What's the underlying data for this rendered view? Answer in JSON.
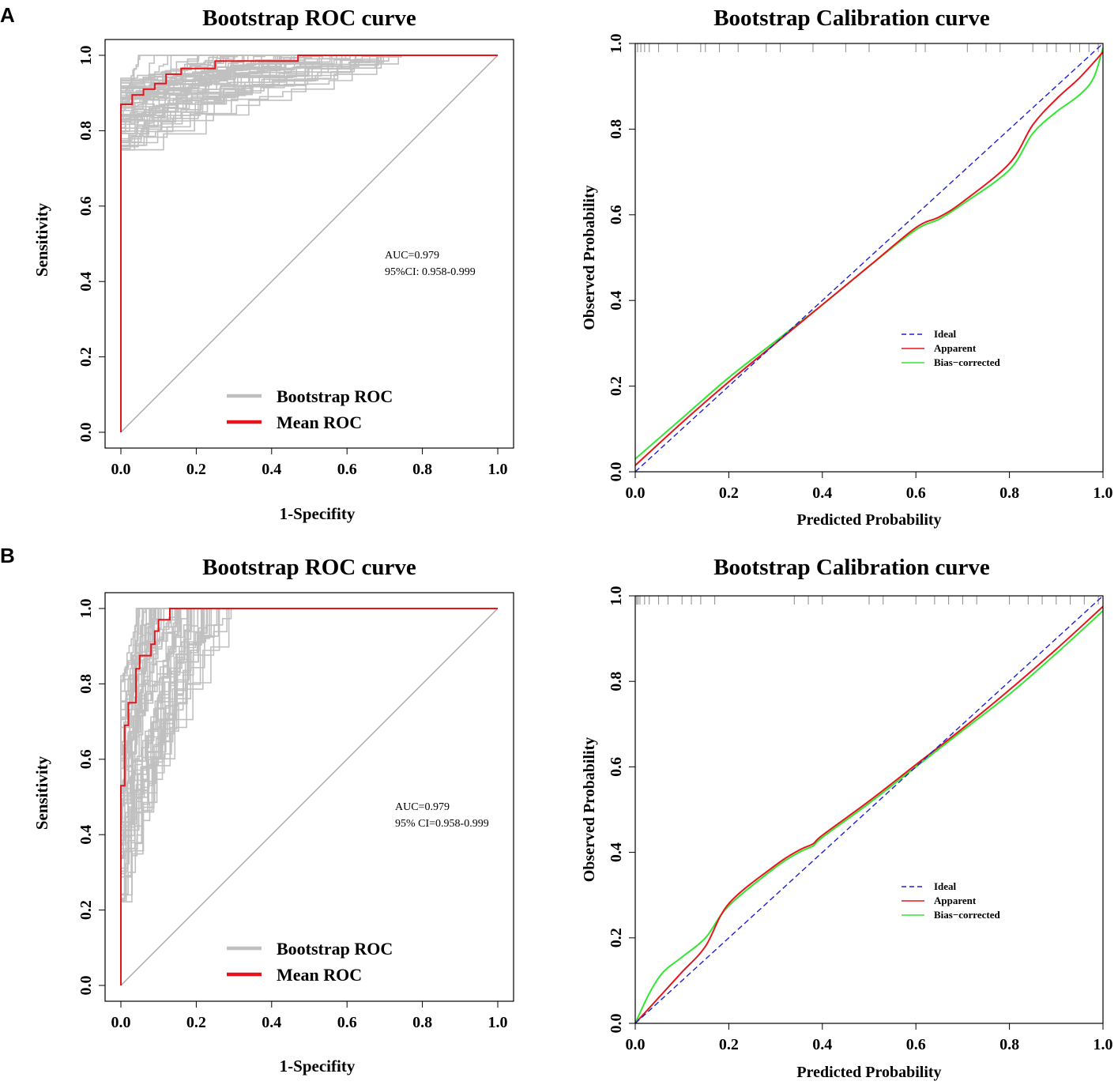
{
  "panels": [
    {
      "label": "A",
      "roc": {
        "title": "Bootstrap ROC curve",
        "xlabel": "1-Specifity",
        "ylabel": "Sensitivity",
        "ticks": [
          "0.0",
          "0.2",
          "0.4",
          "0.6",
          "0.8",
          "1.0"
        ],
        "auc_text": "AUC=0.979",
        "ci_text": "95%CI: 0.958-0.999",
        "legend": [
          {
            "label": "Bootstrap ROC",
            "color": "#bfbfbf"
          },
          {
            "label": "Mean ROC",
            "color": "#e8141b"
          }
        ]
      },
      "calibration": {
        "title": "Bootstrap Calibration curve",
        "xlabel": "Predicted Probability",
        "ylabel": "Observed Probability",
        "ticks": [
          "0.0",
          "0.2",
          "0.4",
          "0.6",
          "0.8",
          "1.0"
        ],
        "legend": [
          {
            "label": "Ideal",
            "color": "#1f1fd6"
          },
          {
            "label": "Apparent",
            "color": "#e8141b"
          },
          {
            "label": "Bias−corrected",
            "color": "#33e633"
          }
        ]
      }
    },
    {
      "label": "B",
      "roc": {
        "title": "Bootstrap ROC curve",
        "xlabel": "1-Specifity",
        "ylabel": "Sensitivity",
        "ticks": [
          "0.0",
          "0.2",
          "0.4",
          "0.6",
          "0.8",
          "1.0"
        ],
        "auc_text": "AUC=0.979",
        "ci_text": "95% CI=0.958-0.999",
        "legend": [
          {
            "label": "Bootstrap ROC",
            "color": "#bfbfbf"
          },
          {
            "label": "Mean ROC",
            "color": "#e8141b"
          }
        ]
      },
      "calibration": {
        "title": "Bootstrap Calibration curve",
        "xlabel": "Predicted Probability",
        "ylabel": "Observed Probability",
        "ticks": [
          "0.0",
          "0.2",
          "0.4",
          "0.6",
          "0.8",
          "1.0"
        ],
        "legend": [
          {
            "label": "Ideal",
            "color": "#1f1fd6"
          },
          {
            "label": "Apparent",
            "color": "#e8141b"
          },
          {
            "label": "Bias−corrected",
            "color": "#33e633"
          }
        ]
      }
    }
  ],
  "chart_data": [
    {
      "type": "line",
      "panel": "A",
      "title": "Bootstrap ROC curve",
      "xlabel": "1-Specifity",
      "ylabel": "Sensitivity",
      "xlim": [
        0,
        1
      ],
      "ylim": [
        0,
        1
      ],
      "grid": false,
      "legend_position": "bottom-center",
      "series": [
        {
          "name": "Mean ROC",
          "x": [
            0,
            0,
            0,
            0.03,
            0.03,
            0.06,
            0.06,
            0.09,
            0.09,
            0.12,
            0.12,
            0.16,
            0.16,
            0.25,
            0.25,
            0.47,
            0.47,
            1.0
          ],
          "y": [
            0,
            0.87,
            0.87,
            0.87,
            0.895,
            0.895,
            0.91,
            0.91,
            0.925,
            0.925,
            0.95,
            0.95,
            0.965,
            0.965,
            0.985,
            0.985,
            1.0,
            1.0
          ]
        },
        {
          "name": "Chance",
          "x": [
            0,
            1
          ],
          "y": [
            0,
            1
          ]
        }
      ],
      "bootstrap_envelope": {
        "name": "Bootstrap ROC",
        "min_sensitivity_at_fpr0": 0.74,
        "max_fpr_to_reach_1": 0.75
      },
      "annotations": [
        "AUC=0.979",
        "95%CI: 0.958-0.999"
      ]
    },
    {
      "type": "line",
      "panel": "A",
      "title": "Bootstrap Calibration curve",
      "xlabel": "Predicted Probability",
      "ylabel": "Observed Probability",
      "xlim": [
        0,
        1
      ],
      "ylim": [
        0,
        1
      ],
      "grid": false,
      "legend_position": "center-right",
      "series": [
        {
          "name": "Ideal",
          "x": [
            0,
            1
          ],
          "y": [
            0,
            1
          ]
        },
        {
          "name": "Apparent",
          "x": [
            0,
            0.1,
            0.2,
            0.3,
            0.4,
            0.5,
            0.6,
            0.65,
            0.7,
            0.8,
            0.85,
            0.9,
            0.95,
            1.0
          ],
          "y": [
            0.015,
            0.115,
            0.21,
            0.3,
            0.39,
            0.48,
            0.57,
            0.595,
            0.63,
            0.72,
            0.81,
            0.87,
            0.92,
            0.98
          ]
        },
        {
          "name": "Bias−corrected",
          "x": [
            0,
            0.1,
            0.2,
            0.3,
            0.4,
            0.5,
            0.6,
            0.65,
            0.7,
            0.8,
            0.85,
            0.9,
            0.95,
            0.98,
            1.0
          ],
          "y": [
            0.03,
            0.125,
            0.22,
            0.305,
            0.39,
            0.48,
            0.565,
            0.59,
            0.625,
            0.705,
            0.79,
            0.84,
            0.88,
            0.92,
            0.99
          ]
        }
      ],
      "rug_x": [
        0.005,
        0.012,
        0.02,
        0.03,
        0.05,
        0.09,
        0.14,
        0.15,
        0.18,
        0.22,
        0.28,
        0.31,
        0.38,
        0.45,
        0.5,
        0.6,
        0.62,
        0.71,
        0.75,
        0.78,
        0.85,
        0.88,
        0.9,
        0.93,
        0.95,
        0.97,
        0.99
      ]
    },
    {
      "type": "line",
      "panel": "B",
      "title": "Bootstrap ROC curve",
      "xlabel": "1-Specifity",
      "ylabel": "Sensitivity",
      "xlim": [
        0,
        1
      ],
      "ylim": [
        0,
        1
      ],
      "grid": false,
      "legend_position": "bottom-center",
      "series": [
        {
          "name": "Mean ROC",
          "x": [
            0,
            0,
            0,
            0.01,
            0.01,
            0.02,
            0.02,
            0.04,
            0.04,
            0.05,
            0.05,
            0.06,
            0.06,
            0.08,
            0.08,
            0.09,
            0.09,
            0.1,
            0.1,
            0.13,
            0.13,
            1.0
          ],
          "y": [
            0,
            0.53,
            0.53,
            0.53,
            0.69,
            0.69,
            0.75,
            0.75,
            0.84,
            0.84,
            0.875,
            0.875,
            0.875,
            0.875,
            0.905,
            0.905,
            0.94,
            0.94,
            0.97,
            0.97,
            1.0,
            1.0
          ]
        },
        {
          "name": "Chance",
          "x": [
            0,
            1
          ],
          "y": [
            0,
            1
          ]
        }
      ],
      "bootstrap_envelope": {
        "name": "Bootstrap ROC",
        "min_sensitivity_at_fpr0": 0.22,
        "max_fpr_to_reach_1": 0.3
      },
      "annotations": [
        "AUC=0.979",
        "95% CI=0.958-0.999"
      ]
    },
    {
      "type": "line",
      "panel": "B",
      "title": "Bootstrap Calibration curve",
      "xlabel": "Predicted Probability",
      "ylabel": "Observed Probability",
      "xlim": [
        0,
        1
      ],
      "ylim": [
        0,
        1
      ],
      "grid": false,
      "legend_position": "center-right",
      "series": [
        {
          "name": "Ideal",
          "x": [
            0,
            1
          ],
          "y": [
            0,
            1
          ]
        },
        {
          "name": "Apparent",
          "x": [
            0,
            0.05,
            0.1,
            0.15,
            0.2,
            0.3,
            0.35,
            0.38,
            0.4,
            0.5,
            0.6,
            0.7,
            0.8,
            0.9,
            1.0
          ],
          "y": [
            0,
            0.06,
            0.12,
            0.18,
            0.28,
            0.37,
            0.405,
            0.42,
            0.44,
            0.52,
            0.605,
            0.69,
            0.78,
            0.875,
            0.975
          ]
        },
        {
          "name": "Bias−corrected",
          "x": [
            0,
            0.03,
            0.06,
            0.1,
            0.15,
            0.2,
            0.3,
            0.35,
            0.38,
            0.4,
            0.5,
            0.6,
            0.7,
            0.8,
            0.9,
            1.0
          ],
          "y": [
            0,
            0.07,
            0.12,
            0.155,
            0.2,
            0.275,
            0.365,
            0.4,
            0.415,
            0.435,
            0.515,
            0.6,
            0.685,
            0.77,
            0.865,
            0.965
          ]
        }
      ],
      "rug_x": [
        0.003,
        0.006,
        0.01,
        0.02,
        0.03,
        0.05,
        0.07,
        0.1,
        0.12,
        0.14,
        0.17,
        0.34,
        0.37,
        0.4,
        0.5,
        0.53,
        0.6,
        0.64,
        0.67,
        0.7,
        0.73,
        0.8,
        0.84,
        0.87,
        0.9,
        0.93,
        0.96,
        0.99
      ]
    }
  ]
}
